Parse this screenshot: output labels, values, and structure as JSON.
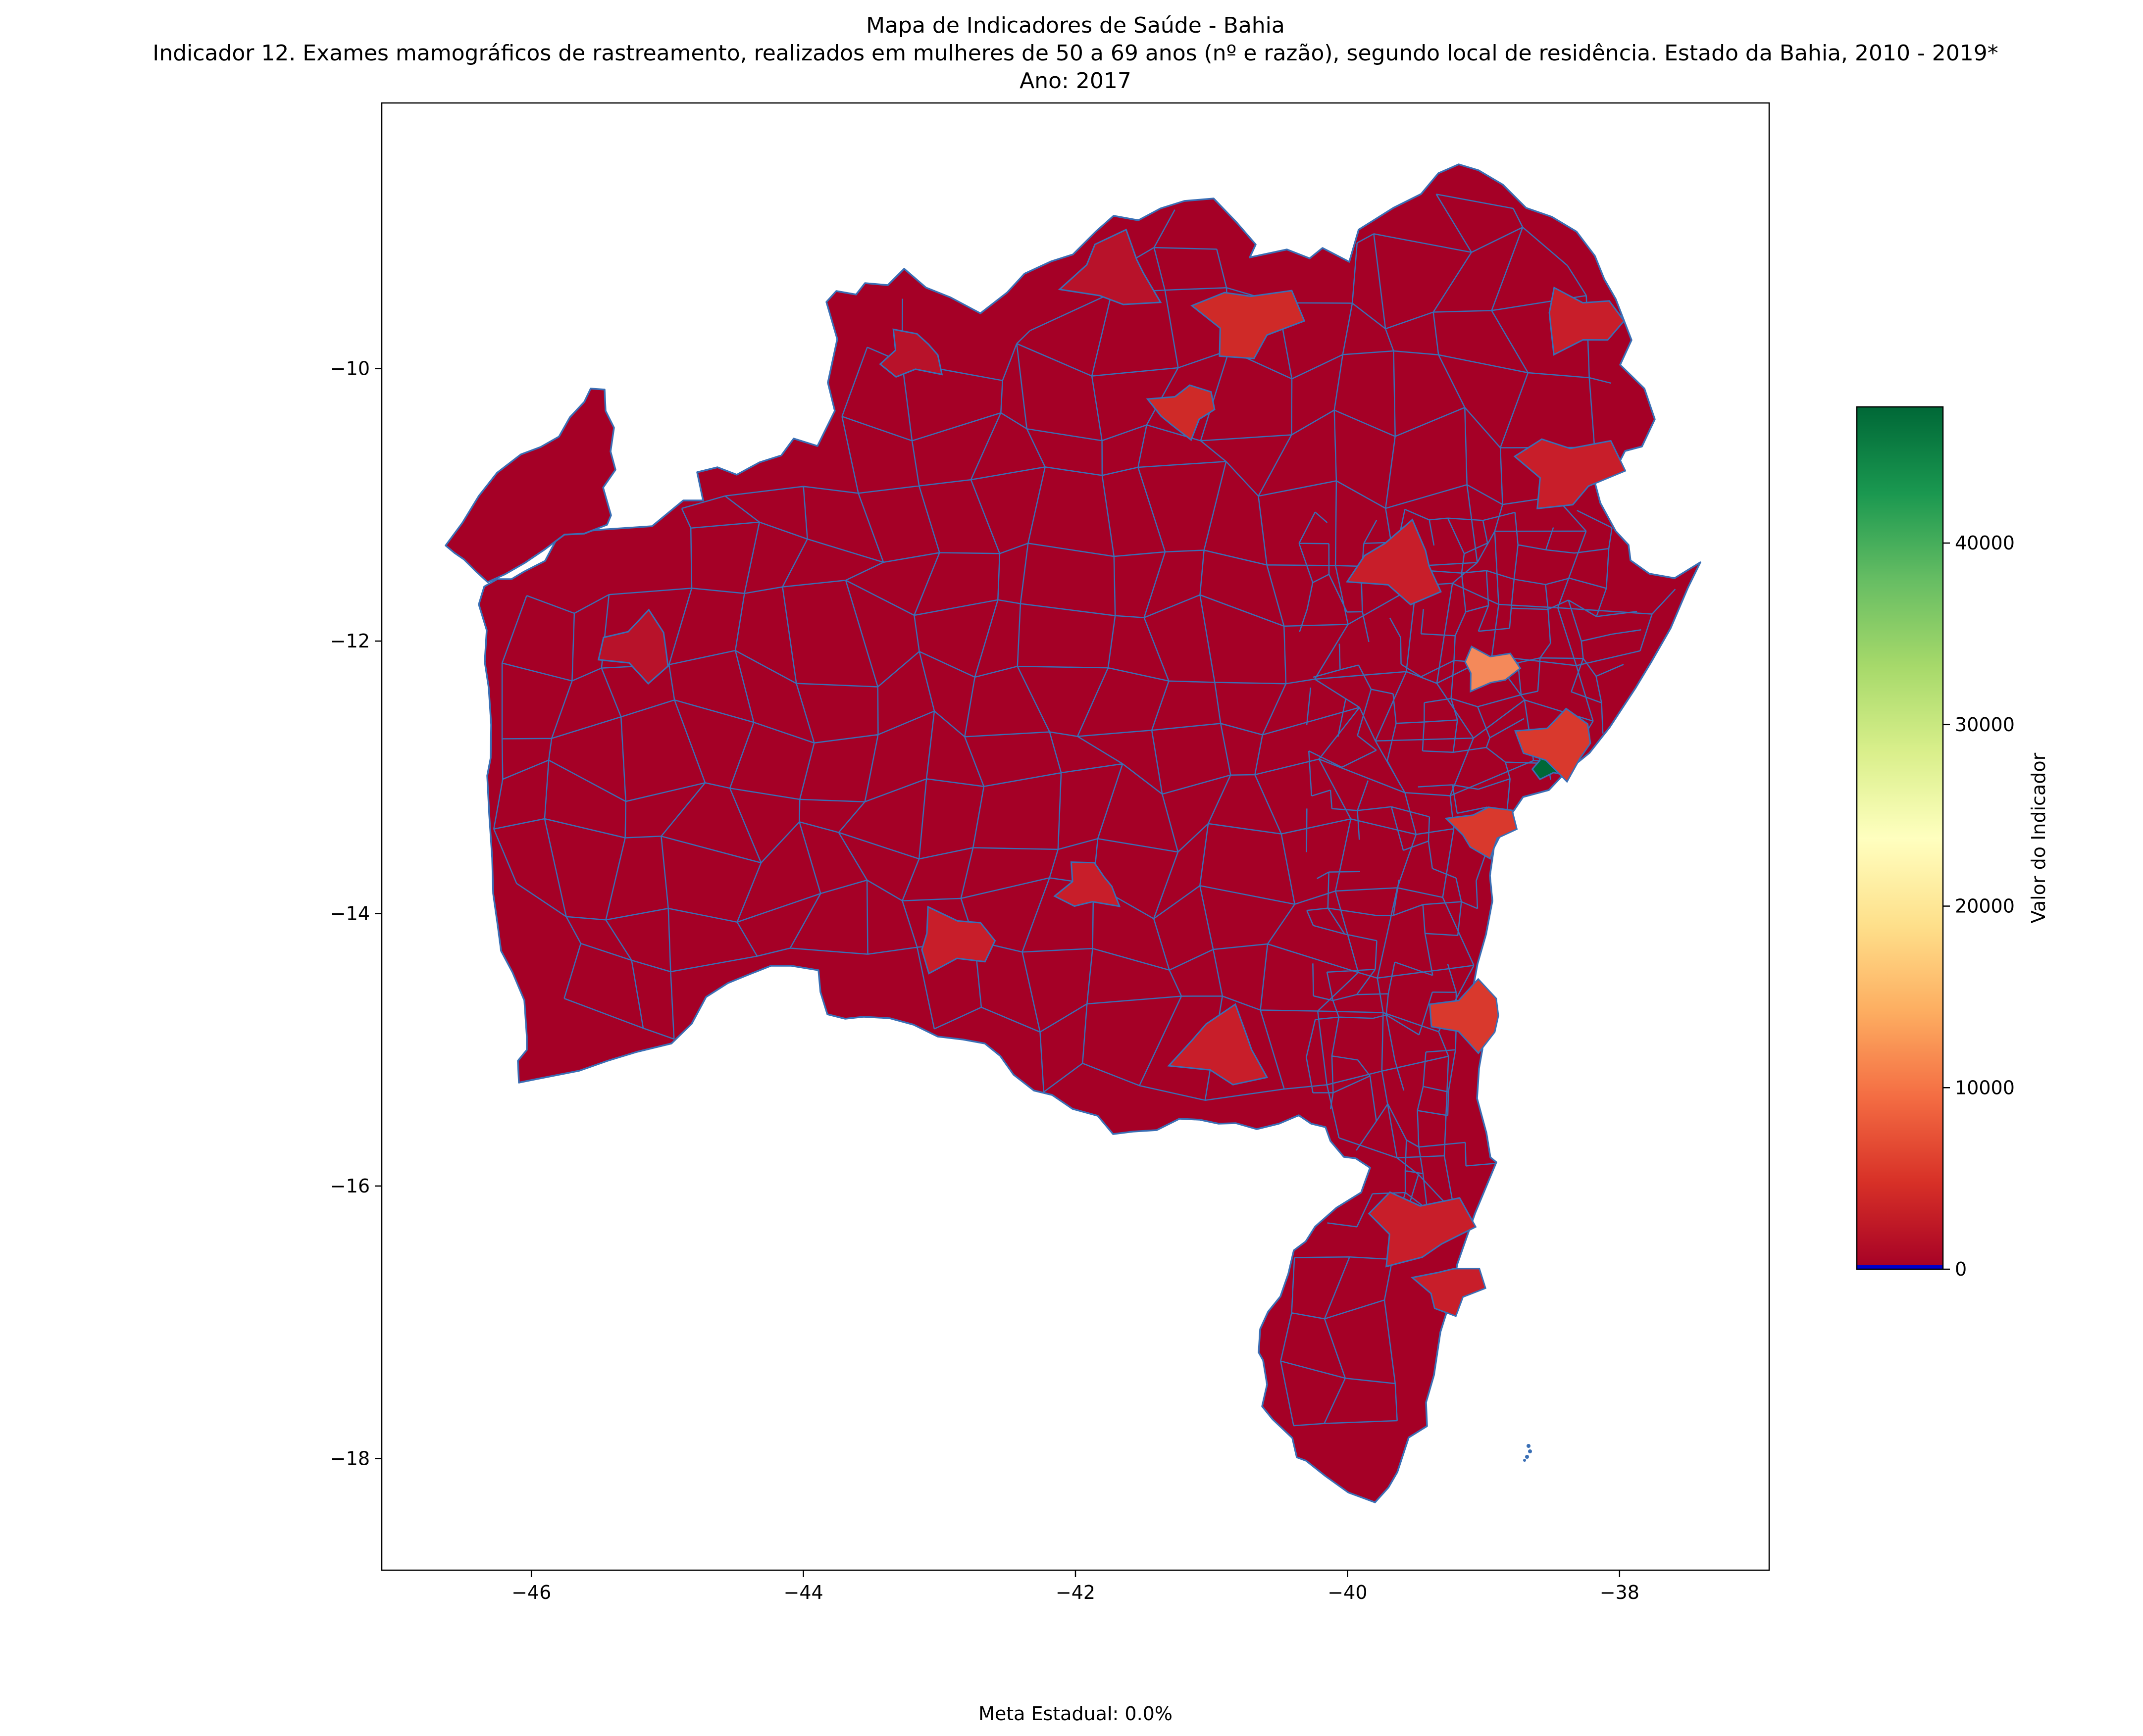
{
  "figure": {
    "title_line1": "Mapa de Indicadores de Saúde - Bahia",
    "title_line2": "Indicador 12. Exames mamográficos de rastreamento, realizados em mulheres de 50 a 69 anos (nº e razão), segundo local de residência. Estado da Bahia, 2010 - 2019*",
    "title_line3": "Ano: 2017",
    "footer": "Meta Estadual: 0.0%"
  },
  "chart_data": {
    "type": "choropleth",
    "x_axis": {
      "ticks": [
        -46,
        -44,
        -42,
        -40,
        -38
      ],
      "tick_labels": [
        "−46",
        "−44",
        "−42",
        "−40",
        "−38"
      ],
      "range": [
        -47.1,
        -36.9
      ]
    },
    "y_axis": {
      "ticks": [
        -10,
        -12,
        -14,
        -16,
        -18
      ],
      "tick_labels": [
        "−10",
        "−12",
        "−14",
        "−16",
        "−18"
      ],
      "range": [
        -18.82,
        -8.05
      ]
    },
    "colorbar": {
      "label": "Valor do Indicador",
      "colormap": "RdYlGn",
      "min": 0,
      "max": 47500,
      "ticks": [
        0,
        10000,
        20000,
        30000,
        40000
      ],
      "tick_labels": [
        "0",
        "10000",
        "20000",
        "30000",
        "40000"
      ],
      "stops": [
        "#a50026",
        "#d73027",
        "#f46d43",
        "#fdae61",
        "#fee08b",
        "#ffffbf",
        "#d9ef8b",
        "#a6d96a",
        "#66bd63",
        "#1a9850",
        "#006837"
      ],
      "zero_line_color": "#0000cc"
    },
    "style": {
      "base_fill": "#a50026",
      "boundary_color": "#3a6fb5"
    },
    "highlighted_regions": [
      {
        "color": "#006837",
        "value": 47500,
        "lon": -38.5,
        "lat": -12.9
      },
      {
        "color": "#f4895a",
        "value": 13500,
        "lon": -38.97,
        "lat": -12.2
      },
      {
        "color": "#cf2a28",
        "value": 4000,
        "lon": -40.75,
        "lat": -9.65
      },
      {
        "color": "#cf2a28",
        "value": 3500,
        "lon": -41.2,
        "lat": -10.3
      },
      {
        "color": "#b8122a",
        "value": 2500,
        "lon": -45.2,
        "lat": -12.05
      },
      {
        "color": "#b8122a",
        "value": 2500,
        "lon": -41.7,
        "lat": -9.3
      },
      {
        "color": "#b8122a",
        "value": 2000,
        "lon": -43.2,
        "lat": -9.9
      },
      {
        "color": "#c81e2a",
        "value": 3000,
        "lon": -38.3,
        "lat": -9.65
      },
      {
        "color": "#c81e2a",
        "value": 3000,
        "lon": -38.4,
        "lat": -10.75
      },
      {
        "color": "#d9392d",
        "value": 5000,
        "lon": -39.0,
        "lat": -13.38
      },
      {
        "color": "#d9392d",
        "value": 5000,
        "lon": -39.1,
        "lat": -14.75
      },
      {
        "color": "#c81e2a",
        "value": 3000,
        "lon": -40.9,
        "lat": -15.0
      },
      {
        "color": "#c81e2a",
        "value": 3000,
        "lon": -41.9,
        "lat": -13.8
      },
      {
        "color": "#c81e2a",
        "value": 3000,
        "lon": -42.9,
        "lat": -14.2
      },
      {
        "color": "#c81e2a",
        "value": 2800,
        "lon": -39.5,
        "lat": -16.3
      },
      {
        "color": "#c81e2a",
        "value": 2800,
        "lon": -39.25,
        "lat": -16.75
      },
      {
        "color": "#d9392d",
        "value": 4500,
        "lon": -38.45,
        "lat": -12.75
      },
      {
        "color": "#c81e2a",
        "value": 2800,
        "lon": -39.6,
        "lat": -11.45
      }
    ]
  }
}
